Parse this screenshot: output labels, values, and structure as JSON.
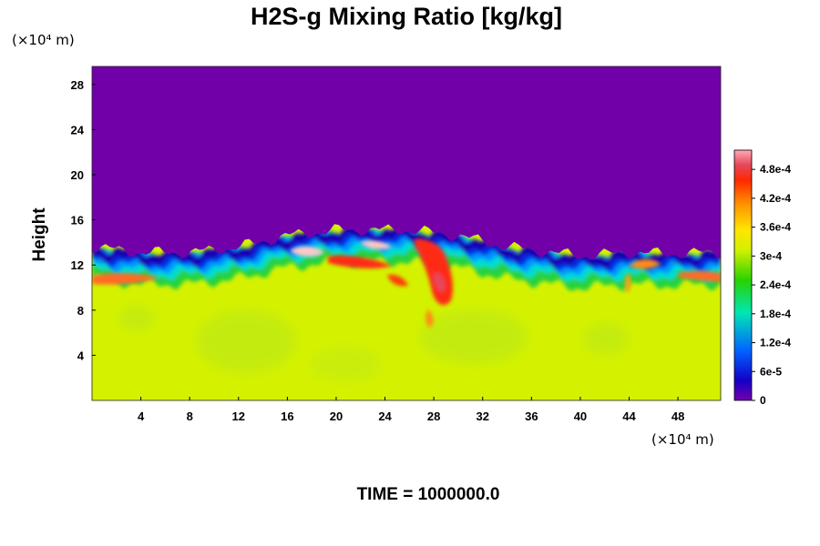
{
  "chart_data": {
    "type": "heatmap",
    "title": "H2S-g Mixing Ratio [kg/kg]",
    "ylabel": "Height",
    "x_unit": "(×10⁴ m)",
    "y_unit": "(×10⁴ m)",
    "footer": "TIME = 1000000.0",
    "xlim": [
      0,
      51.5
    ],
    "ylim": [
      0,
      29.6
    ],
    "x_ticks": [
      4,
      8,
      12,
      16,
      20,
      24,
      28,
      32,
      36,
      40,
      44,
      48
    ],
    "y_ticks": [
      4,
      8,
      12,
      16,
      20,
      24,
      28
    ],
    "x_tick_labels": [
      "4",
      "8",
      "12",
      "16",
      "20",
      "24",
      "28",
      "32",
      "36",
      "40",
      "44",
      "48"
    ],
    "y_tick_labels": [
      "4",
      "8",
      "12",
      "16",
      "20",
      "24",
      "28"
    ],
    "colorbar": {
      "range": [
        0,
        0.00052
      ],
      "tick_labels": [
        "0",
        "6e-5",
        "1.2e-4",
        "1.8e-4",
        "2.4e-4",
        "3e-4",
        "3.6e-4",
        "4.2e-4",
        "4.8e-4"
      ],
      "tick_values": [
        0,
        6e-05,
        0.00012,
        0.00018,
        0.00024,
        0.0003,
        0.00036,
        0.00042,
        0.00048
      ]
    },
    "field_summary": {
      "upper_layer_value": 0,
      "lower_layer_value": 0.00034,
      "interface_height": [
        [
          0,
          13.0
        ],
        [
          4,
          12.5
        ],
        [
          8,
          12.5
        ],
        [
          12,
          13.0
        ],
        [
          16,
          14.0
        ],
        [
          20,
          14.5
        ],
        [
          26,
          14.5
        ],
        [
          30,
          14.0
        ],
        [
          34,
          13.0
        ],
        [
          40,
          12.2
        ],
        [
          44,
          12.5
        ],
        [
          47,
          12.4
        ],
        [
          51.5,
          12.5
        ]
      ],
      "max_value_region": {
        "x": [
          16,
          30
        ],
        "y": [
          9,
          15
        ],
        "value": 0.00048
      }
    }
  }
}
